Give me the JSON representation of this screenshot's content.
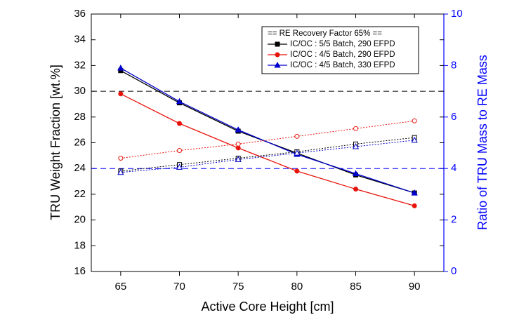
{
  "chart_data": {
    "type": "line",
    "x_label": "Active Core Height [cm]",
    "y_label": "TRU Weight Fraction [wt.%]",
    "y2_label": "Ratio of TRU Mass to RE Mass",
    "y2_color": "#0000ff",
    "legend_title": "== RE Recovery Factor 65% ==",
    "legend_position": "upper right",
    "x": [
      65,
      70,
      75,
      80,
      85,
      90
    ],
    "xlim": [
      62.5,
      92.5
    ],
    "xticks": [
      65,
      70,
      75,
      80,
      85,
      90
    ],
    "ylim": [
      16,
      36
    ],
    "yticks": [
      16,
      18,
      20,
      22,
      24,
      26,
      28,
      30,
      32,
      34,
      36
    ],
    "y2lim": [
      0,
      10
    ],
    "y2ticks": [
      0,
      2,
      4,
      6,
      8,
      10
    ],
    "hlines": [
      {
        "value": 30,
        "color": "#000000"
      },
      {
        "value": 4,
        "axis": "y2",
        "color": "#0000ff"
      }
    ],
    "series": [
      {
        "name": "IC/OC : 5/5 Batch, 290 EFPD",
        "color": "#000000",
        "marker": "square",
        "filled": true,
        "values": [
          31.6,
          29.1,
          26.9,
          25.2,
          23.5,
          22.1
        ]
      },
      {
        "name": "IC/OC : 4/5 Batch, 290 EFPD",
        "color": "#e8140c",
        "marker": "circle",
        "filled": true,
        "values": [
          29.8,
          27.5,
          25.6,
          23.8,
          22.4,
          21.1
        ]
      },
      {
        "name": "IC/OC : 4/5 Batch, 330 EFPD",
        "color": "#0000cc",
        "marker": "triangle",
        "filled": true,
        "values": [
          31.8,
          29.2,
          27.0,
          25.1,
          23.6,
          22.1
        ]
      },
      {
        "color": "#000000",
        "marker": "square",
        "filled": false,
        "dashed": true,
        "axis": "y2",
        "values": [
          3.9,
          4.15,
          4.4,
          4.65,
          4.95,
          5.2
        ]
      },
      {
        "color": "#e8140c",
        "marker": "circle",
        "filled": false,
        "dashed": true,
        "axis": "y2",
        "values": [
          4.4,
          4.7,
          4.95,
          5.25,
          5.55,
          5.85
        ]
      },
      {
        "color": "#0000cc",
        "marker": "triangle",
        "filled": false,
        "dashed": true,
        "axis": "y2",
        "values": [
          3.85,
          4.05,
          4.35,
          4.6,
          4.85,
          5.1
        ]
      }
    ]
  }
}
